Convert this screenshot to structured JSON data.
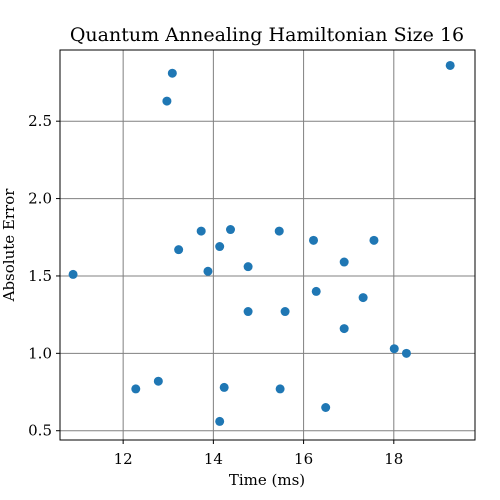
{
  "chart_data": {
    "type": "scatter",
    "title": "Quantum Annealing Hamiltonian Size 16",
    "xlabel": "Time (ms)",
    "ylabel": "Absolute Error",
    "xlim": [
      10.6,
      19.8
    ],
    "ylim": [
      0.44,
      2.96
    ],
    "xticks": [
      12,
      14,
      16,
      18
    ],
    "xtick_labels": [
      "12",
      "14",
      "16",
      "18"
    ],
    "yticks": [
      0.5,
      1.0,
      1.5,
      2.0,
      2.5
    ],
    "ytick_labels": [
      "0.5",
      "1.0",
      "1.5",
      "2.0",
      "2.5"
    ],
    "grid": true,
    "marker_color": "#1f77b4",
    "points": [
      {
        "x": 10.89,
        "y": 1.51
      },
      {
        "x": 12.28,
        "y": 0.77
      },
      {
        "x": 12.78,
        "y": 0.82
      },
      {
        "x": 12.97,
        "y": 2.63
      },
      {
        "x": 13.09,
        "y": 2.81
      },
      {
        "x": 13.23,
        "y": 1.67
      },
      {
        "x": 13.73,
        "y": 1.79
      },
      {
        "x": 13.88,
        "y": 1.53
      },
      {
        "x": 14.14,
        "y": 1.69
      },
      {
        "x": 14.38,
        "y": 1.8
      },
      {
        "x": 14.14,
        "y": 0.56
      },
      {
        "x": 14.24,
        "y": 0.78
      },
      {
        "x": 14.77,
        "y": 1.56
      },
      {
        "x": 14.77,
        "y": 1.27
      },
      {
        "x": 15.46,
        "y": 1.79
      },
      {
        "x": 15.48,
        "y": 0.77
      },
      {
        "x": 15.59,
        "y": 1.27
      },
      {
        "x": 16.22,
        "y": 1.73
      },
      {
        "x": 16.28,
        "y": 1.4
      },
      {
        "x": 16.49,
        "y": 0.65
      },
      {
        "x": 16.9,
        "y": 1.59
      },
      {
        "x": 16.9,
        "y": 1.16
      },
      {
        "x": 17.32,
        "y": 1.36
      },
      {
        "x": 17.56,
        "y": 1.73
      },
      {
        "x": 18.01,
        "y": 1.03
      },
      {
        "x": 18.28,
        "y": 1.0
      },
      {
        "x": 19.25,
        "y": 2.86
      }
    ]
  }
}
